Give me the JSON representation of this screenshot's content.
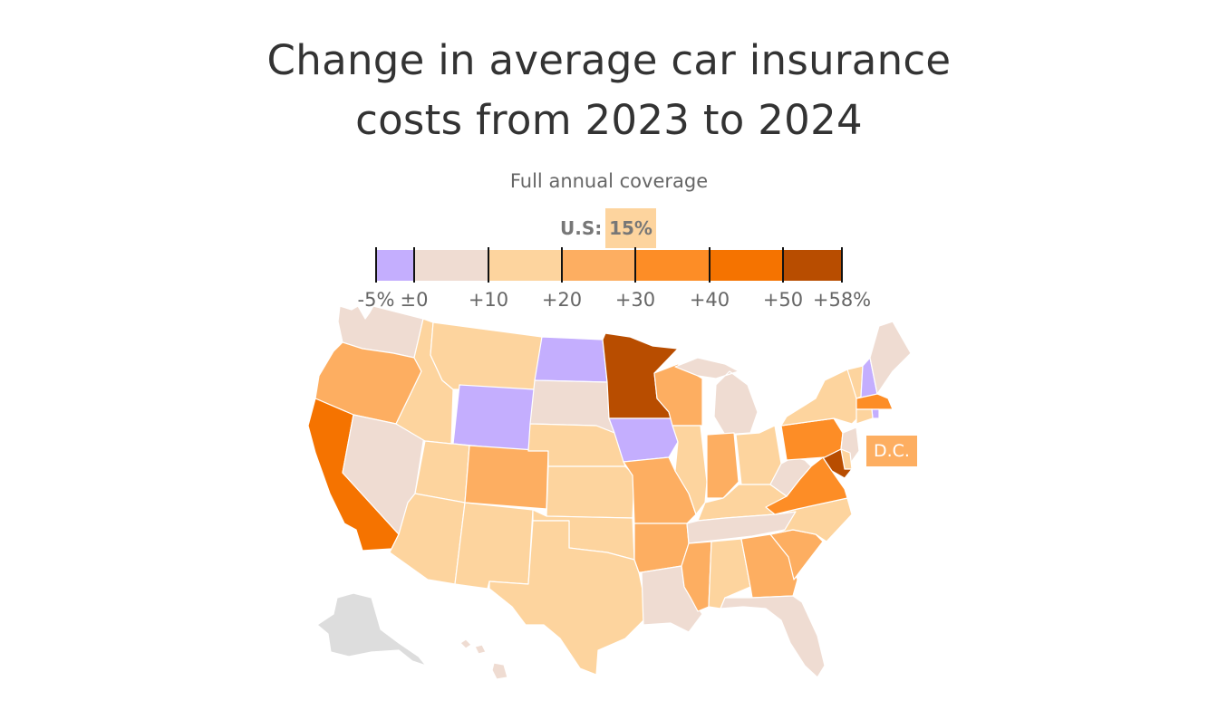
{
  "title_lines": [
    "Change in average car insurance",
    "costs from 2023 to 2024"
  ],
  "subtitle": "Full annual coverage",
  "us_label": "U.S:",
  "us_value": "15%",
  "dc_label": "D.C.",
  "colors": {
    "b0": "#c4aefe",
    "b1": "#efdcd2",
    "b2": "#fdd49e",
    "b3": "#fdae61",
    "b4": "#fd8d26",
    "b5": "#f57300",
    "b6": "#b84d00",
    "nodata": "#dddddd"
  },
  "legend": {
    "ticks": [
      "-5%",
      "±0",
      "+10",
      "+20",
      "+30",
      "+40",
      "+50",
      "+58%"
    ],
    "breaks": [
      -5,
      0,
      10,
      20,
      30,
      40,
      50,
      58
    ]
  },
  "chart_data": {
    "type": "choropleth",
    "region": "United States",
    "us_average_pct": 15,
    "bins": [
      "-5 to 0",
      "0 to 10",
      "10 to 20",
      "20 to 30",
      "30 to 40",
      "40 to 50",
      "50 to 58"
    ],
    "states": {
      "WA": "0 to 10",
      "OR": "20 to 30",
      "CA": "40 to 50",
      "NV": "0 to 10",
      "ID": "10 to 20",
      "MT": "10 to 20",
      "WY": "-5 to 0",
      "UT": "10 to 20",
      "AZ": "10 to 20",
      "CO": "20 to 30",
      "NM": "10 to 20",
      "ND": "-5 to 0",
      "SD": "0 to 10",
      "NE": "10 to 20",
      "KS": "10 to 20",
      "OK": "10 to 20",
      "TX": "10 to 20",
      "MN": "50 to 58",
      "IA": "-5 to 0",
      "MO": "20 to 30",
      "AR": "20 to 30",
      "LA": "0 to 10",
      "WI": "20 to 30",
      "IL": "10 to 20",
      "MI": "0 to 10",
      "IN": "20 to 30",
      "OH": "10 to 20",
      "KY": "10 to 20",
      "TN": "0 to 10",
      "MS": "20 to 30",
      "AL": "10 to 20",
      "GA": "20 to 30",
      "FL": "0 to 10",
      "SC": "20 to 30",
      "NC": "10 to 20",
      "VA": "30 to 40",
      "WV": "0 to 10",
      "PA": "30 to 40",
      "NY": "10 to 20",
      "VT": "10 to 20",
      "NH": "-5 to 0",
      "ME": "0 to 10",
      "MA": "30 to 40",
      "RI": "-5 to 0",
      "CT": "10 to 20",
      "NJ": "0 to 10",
      "DE": "10 to 20",
      "MD": "50 to 58",
      "DC": "20 to 30",
      "AK": "no data",
      "HI": "0 to 10"
    }
  }
}
